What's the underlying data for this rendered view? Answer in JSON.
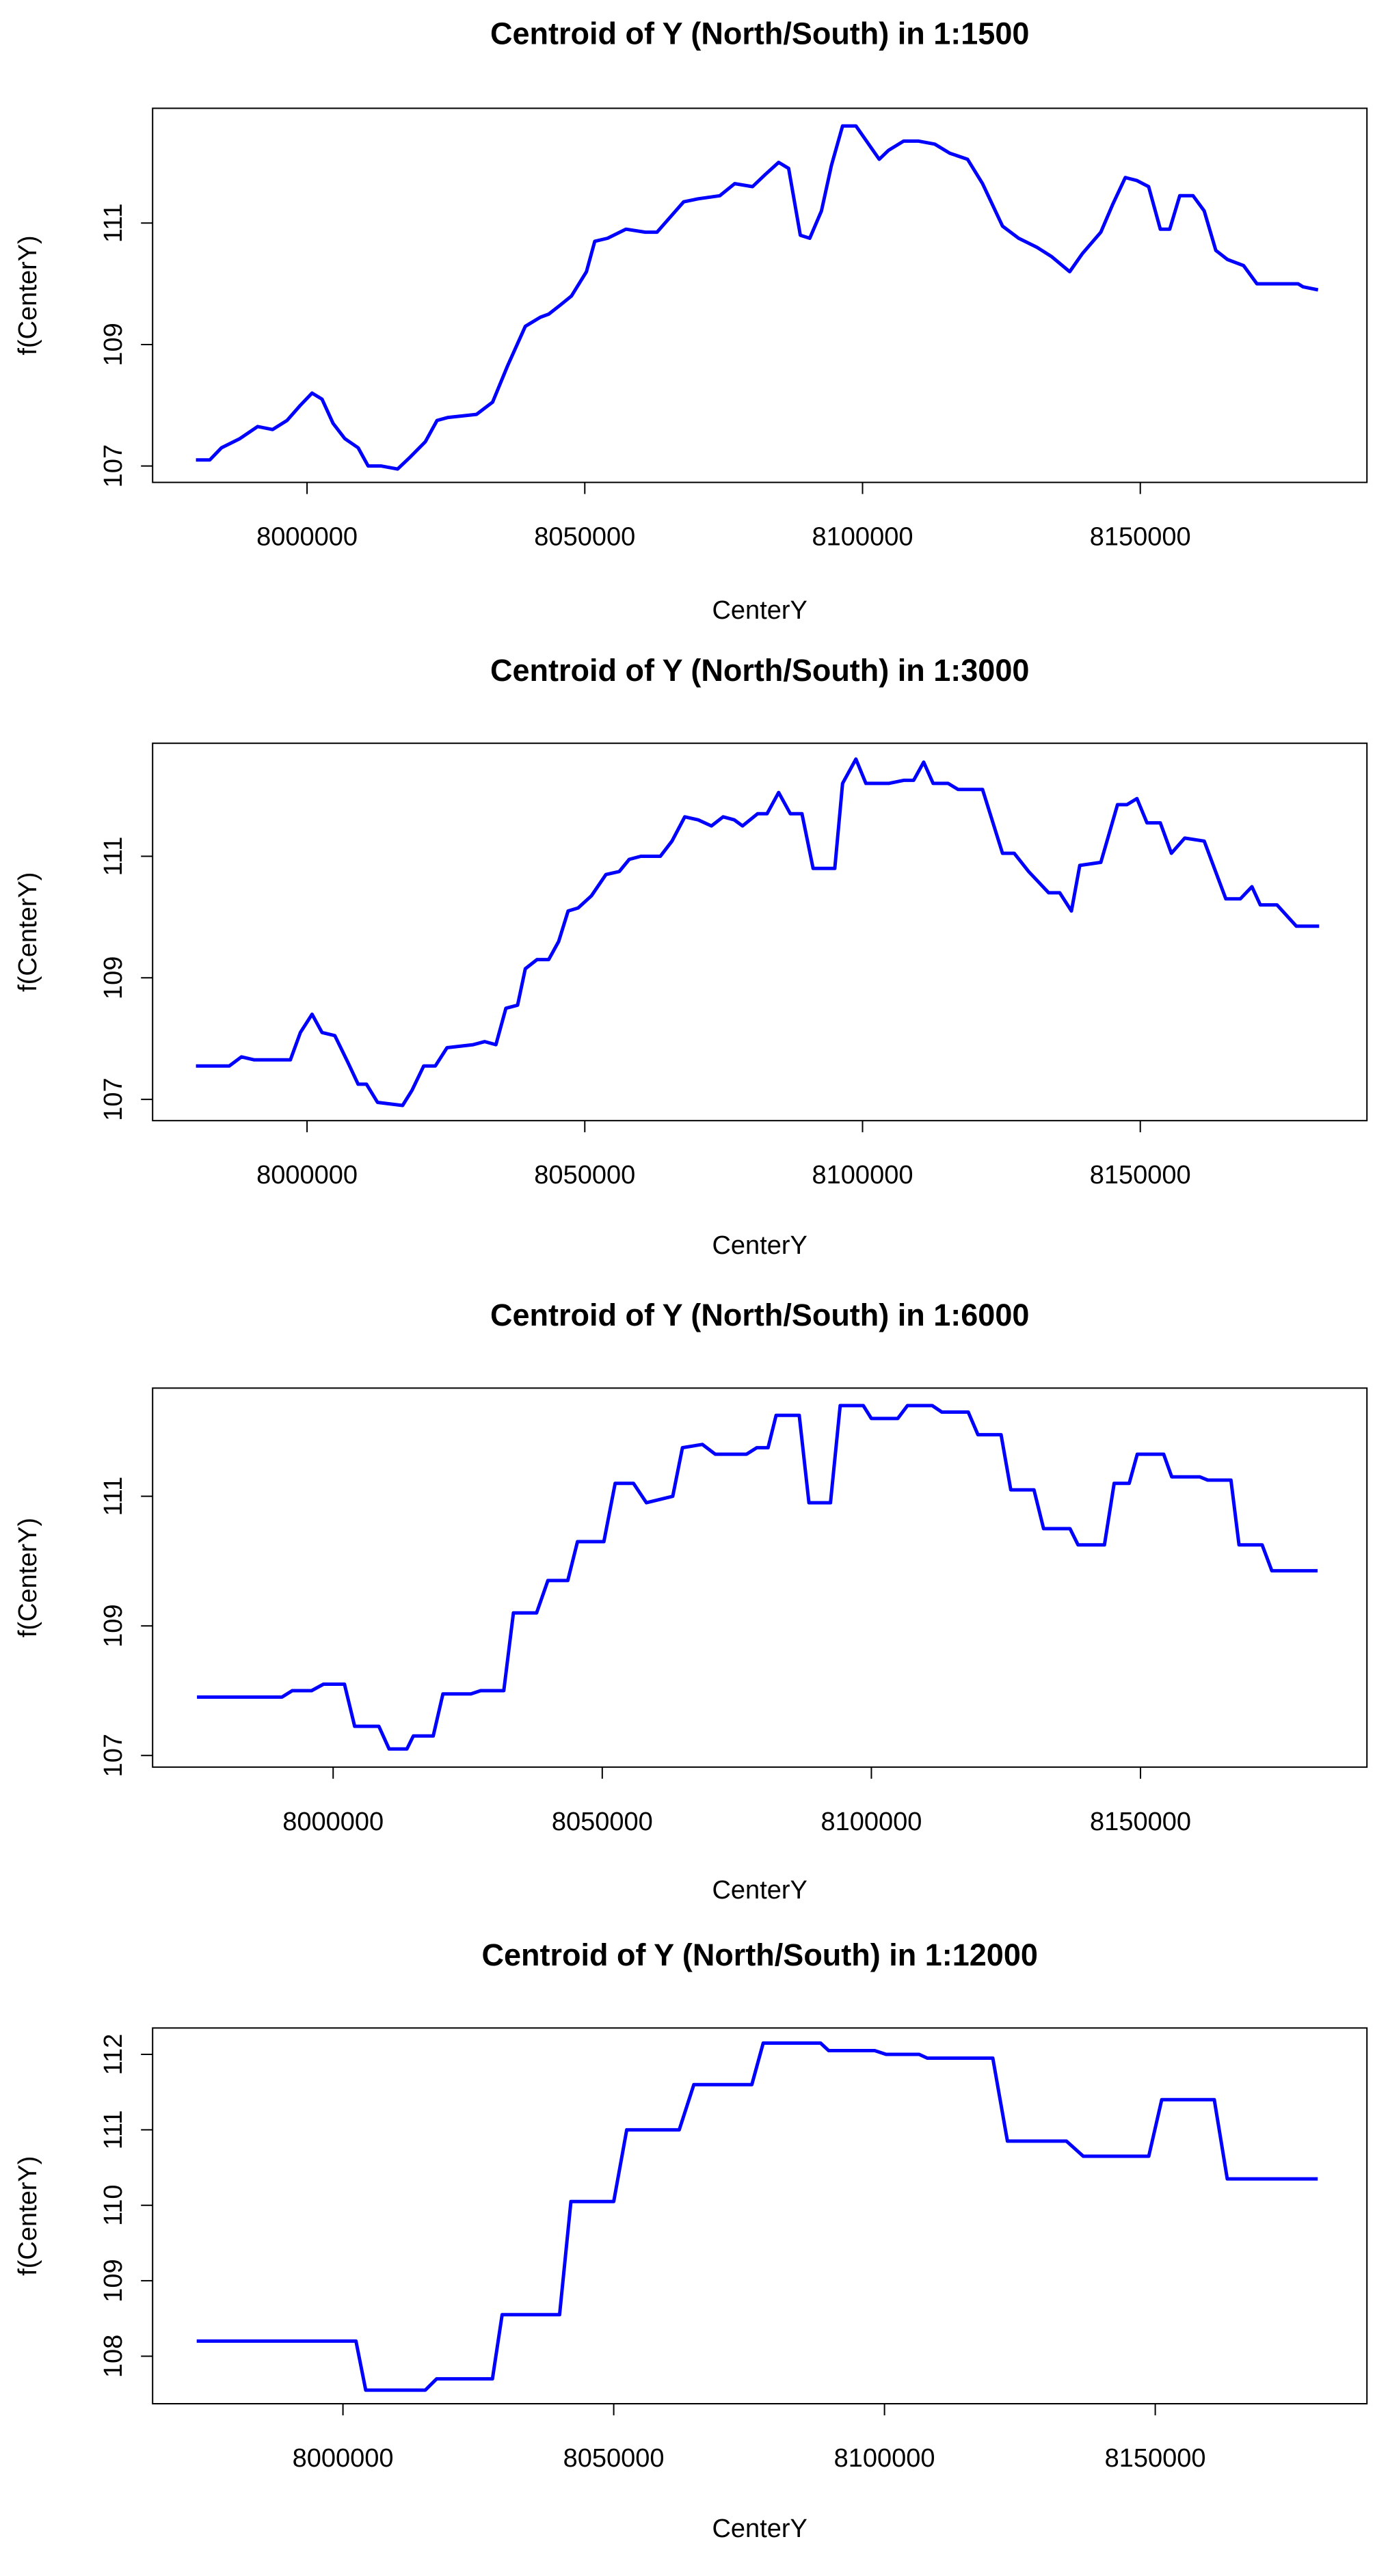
{
  "chart_data": [
    {
      "type": "line",
      "title": "Centroid of Y (North/South) in 1:1500",
      "x_label": "CenterY",
      "y_label": "f(CenterY)",
      "color": "#0000ff",
      "xlim": [
        7972200,
        8190800
      ],
      "ylim": [
        106.73,
        112.89
      ],
      "xticks": [
        8000000,
        8050000,
        8100000,
        8150000
      ],
      "yticks": [
        107,
        109,
        111
      ],
      "x": [
        7980000,
        7982500,
        7984600,
        7987900,
        7991100,
        7993800,
        7996400,
        7998800,
        8000900,
        8002700,
        8004700,
        8006800,
        8009200,
        8011000,
        8013300,
        8016300,
        8018600,
        8021300,
        8023400,
        8025400,
        8030500,
        8033400,
        8036100,
        8039300,
        8042000,
        8043500,
        8045600,
        8047600,
        8050300,
        8051800,
        8054100,
        8057400,
        8060900,
        8063000,
        8065400,
        8067800,
        8070400,
        8074300,
        8077000,
        8080200,
        8082500,
        8084900,
        8086700,
        8088800,
        8090500,
        8092600,
        8094400,
        8096400,
        8098800,
        8103000,
        8104700,
        8107400,
        8110100,
        8113000,
        8115700,
        8118900,
        8121600,
        8125200,
        8128100,
        8131400,
        8134000,
        8137300,
        8139600,
        8142900,
        8145000,
        8147300,
        8149400,
        8151500,
        8153600,
        8155300,
        8157100,
        8159500,
        8161500,
        8163600,
        8165700,
        8168600,
        8171000,
        8174900,
        8178400,
        8179300,
        8182000
      ],
      "values": [
        107.1,
        107.1,
        107.3,
        107.45,
        107.65,
        107.6,
        107.75,
        108.0,
        108.2,
        108.1,
        107.7,
        107.45,
        107.3,
        107.0,
        107.0,
        106.95,
        107.15,
        107.4,
        107.75,
        107.8,
        107.85,
        108.05,
        108.65,
        109.3,
        109.45,
        109.5,
        109.65,
        109.8,
        110.2,
        110.7,
        110.75,
        110.9,
        110.85,
        110.85,
        111.1,
        111.35,
        111.4,
        111.45,
        111.65,
        111.6,
        111.8,
        112.0,
        111.9,
        110.8,
        110.75,
        111.2,
        111.95,
        112.6,
        112.6,
        112.05,
        112.2,
        112.35,
        112.35,
        112.3,
        112.15,
        112.05,
        111.65,
        110.95,
        110.75,
        110.6,
        110.45,
        110.2,
        110.5,
        110.85,
        111.3,
        111.75,
        111.7,
        111.6,
        110.9,
        110.9,
        111.45,
        111.45,
        111.2,
        110.55,
        110.4,
        110.3,
        110.0,
        110.0,
        110.0,
        109.95,
        109.9
      ]
    },
    {
      "type": "line",
      "title": "Centroid of Y (North/South) in 1:3000",
      "x_label": "CenterY",
      "y_label": "f(CenterY)",
      "color": "#0000ff",
      "xlim": [
        7972200,
        8190800
      ],
      "ylim": [
        106.65,
        112.86
      ],
      "xticks": [
        8000000,
        8050000,
        8100000,
        8150000
      ],
      "yticks": [
        107,
        109,
        111
      ],
      "x": [
        7980000,
        7986000,
        7988200,
        7990500,
        7997000,
        7998800,
        8000900,
        8002700,
        8005000,
        8007400,
        8009200,
        8010700,
        8012700,
        8017200,
        8018900,
        8021000,
        8023100,
        8025200,
        8029900,
        8032000,
        8034000,
        8035800,
        8037900,
        8039300,
        8041400,
        8043500,
        8045300,
        8047000,
        8048800,
        8051200,
        8053800,
        8056200,
        8058000,
        8060100,
        8063600,
        8065700,
        8068000,
        8070400,
        8072800,
        8074900,
        8076900,
        8078400,
        8081100,
        8082800,
        8084900,
        8087000,
        8089100,
        8091100,
        8095000,
        8096400,
        8098800,
        8100600,
        8104700,
        8107400,
        8109200,
        8111000,
        8112700,
        8115400,
        8117200,
        8121600,
        8125200,
        8127300,
        8129900,
        8133500,
        8135500,
        8137600,
        8139100,
        8142900,
        8145900,
        8147600,
        8149400,
        8151200,
        8153600,
        8155600,
        8158000,
        8161500,
        8165400,
        8168000,
        8170100,
        8171600,
        8174600,
        8178100,
        8182200
      ],
      "values": [
        107.55,
        107.55,
        107.7,
        107.65,
        107.65,
        108.1,
        108.4,
        108.1,
        108.05,
        107.6,
        107.25,
        107.25,
        106.95,
        106.9,
        107.15,
        107.55,
        107.55,
        107.85,
        107.9,
        107.95,
        107.9,
        108.5,
        108.55,
        109.15,
        109.3,
        109.3,
        109.6,
        110.1,
        110.15,
        110.35,
        110.7,
        110.75,
        110.95,
        111.0,
        111.0,
        111.25,
        111.65,
        111.6,
        111.5,
        111.65,
        111.6,
        111.5,
        111.7,
        111.7,
        112.05,
        111.7,
        111.7,
        110.8,
        110.8,
        112.2,
        112.6,
        112.2,
        112.2,
        112.25,
        112.25,
        112.55,
        112.2,
        112.2,
        112.1,
        112.1,
        111.05,
        111.05,
        110.75,
        110.4,
        110.4,
        110.1,
        110.85,
        110.9,
        111.85,
        111.85,
        111.95,
        111.55,
        111.55,
        111.05,
        111.3,
        111.25,
        110.3,
        110.3,
        110.5,
        110.2,
        110.2,
        109.85,
        109.85
      ]
    },
    {
      "type": "line",
      "title": "Centroid of Y (North/South) in 1:6000",
      "x_label": "CenterY",
      "y_label": "f(CenterY)",
      "color": "#0000ff",
      "xlim": [
        7966460,
        8192070
      ],
      "ylim": [
        106.82,
        112.67
      ],
      "xticks": [
        8000000,
        8050000,
        8100000,
        8150000
      ],
      "yticks": [
        107,
        109,
        111
      ],
      "x": [
        7974700,
        7990500,
        7992400,
        7996000,
        7998200,
        8002100,
        8004000,
        8008500,
        8010400,
        8013700,
        8014900,
        8018600,
        8020400,
        8025600,
        8027400,
        8031700,
        8033500,
        8037800,
        8039900,
        8043600,
        8045400,
        8050300,
        8052400,
        8055800,
        8058200,
        8063100,
        8064900,
        8068600,
        8071000,
        8076800,
        8078700,
        8080800,
        8082300,
        8086600,
        8088400,
        8092400,
        8094200,
        8098500,
        8100000,
        8104900,
        8106700,
        8111300,
        8113100,
        8118000,
        8119800,
        8124100,
        8125900,
        8130200,
        8132000,
        8136900,
        8138400,
        8143300,
        8145100,
        8147900,
        8149400,
        8154300,
        8155800,
        8161000,
        8162500,
        8166800,
        8168300,
        8172600,
        8174400,
        8182900
      ],
      "values": [
        107.9,
        107.9,
        108.0,
        108.0,
        108.1,
        108.1,
        107.45,
        107.45,
        107.1,
        107.1,
        107.3,
        107.3,
        107.95,
        107.95,
        108.0,
        108.0,
        109.2,
        109.2,
        109.7,
        109.7,
        110.3,
        110.3,
        111.2,
        111.2,
        110.9,
        111.0,
        111.75,
        111.8,
        111.65,
        111.65,
        111.75,
        111.75,
        112.25,
        112.25,
        110.9,
        110.9,
        112.4,
        112.4,
        112.2,
        112.2,
        112.4,
        112.4,
        112.3,
        112.3,
        111.95,
        111.95,
        111.1,
        111.1,
        110.5,
        110.5,
        110.25,
        110.25,
        111.2,
        111.2,
        111.65,
        111.65,
        111.3,
        111.3,
        111.25,
        111.25,
        110.25,
        110.25,
        109.85,
        109.85
      ]
    },
    {
      "type": "line",
      "title": "Centroid of Y (North/South) in 1:12000",
      "x_label": "CenterY",
      "y_label": "f(CenterY)",
      "color": "#0000ff",
      "xlim": [
        7964850,
        8189090
      ],
      "ylim": [
        107.37,
        112.35
      ],
      "xticks": [
        8000000,
        8050000,
        8100000,
        8150000
      ],
      "yticks": [
        108,
        109,
        110,
        111,
        112
      ],
      "x": [
        7973000,
        8002400,
        8004200,
        8015200,
        8017300,
        8027600,
        8029400,
        8040000,
        8042100,
        8050000,
        8052400,
        8062100,
        8064800,
        8075500,
        8077600,
        8088200,
        8089700,
        8098200,
        8100300,
        8106400,
        8107900,
        8120000,
        8122700,
        8133600,
        8136700,
        8148800,
        8151200,
        8160900,
        8163300,
        8180000
      ],
      "values": [
        108.2,
        108.2,
        107.55,
        107.55,
        107.7,
        107.7,
        108.55,
        108.55,
        110.05,
        110.05,
        111.0,
        111.0,
        111.6,
        111.6,
        112.15,
        112.15,
        112.05,
        112.05,
        112.0,
        112.0,
        111.95,
        111.95,
        110.85,
        110.85,
        110.65,
        110.65,
        111.4,
        111.4,
        110.35,
        110.35
      ]
    }
  ]
}
